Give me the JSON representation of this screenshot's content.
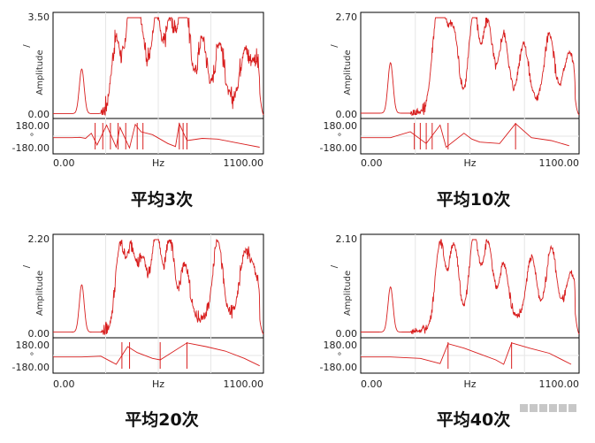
{
  "colors": {
    "trace": "#d81e1e",
    "frame": "#000000",
    "grid": "#e6e6e6"
  },
  "chart_data": [
    {
      "type": "line",
      "title": "平均3次",
      "xlabel": "Hz",
      "ylabel": "Amplitude",
      "phase_unit": "°",
      "y_unit_glyph": "/",
      "xlim": [
        0,
        1100
      ],
      "ylim": [
        0,
        3.5
      ],
      "x_ticks": [
        "0.00",
        "1100.00"
      ],
      "y_ticks": [
        "3.50",
        "0.00"
      ],
      "phase_ticks": [
        "180.00",
        "-180.00"
      ],
      "phase_lim": [
        -180,
        180
      ],
      "noise": 0.55,
      "peaks": [
        [
          150,
          1.6
        ],
        [
          330,
          2.6
        ],
        [
          400,
          2.8
        ],
        [
          430,
          3.3
        ],
        [
          470,
          1.9
        ],
        [
          540,
          3.5
        ],
        [
          610,
          3.1
        ],
        [
          670,
          2.6
        ],
        [
          700,
          2.3
        ],
        [
          780,
          2.4
        ],
        [
          870,
          2.2
        ],
        [
          1000,
          1.8
        ],
        [
          1060,
          1.4
        ]
      ],
      "phase_path": [
        [
          0,
          -20
        ],
        [
          100,
          -20
        ],
        [
          140,
          -15
        ],
        [
          170,
          -30
        ],
        [
          200,
          40
        ],
        [
          230,
          -120
        ],
        [
          280,
          150
        ],
        [
          330,
          -150
        ],
        [
          350,
          120
        ],
        [
          400,
          -160
        ],
        [
          430,
          160
        ],
        [
          460,
          60
        ],
        [
          520,
          20
        ],
        [
          560,
          -40
        ],
        [
          600,
          -100
        ],
        [
          640,
          -140
        ],
        [
          660,
          170
        ],
        [
          700,
          -60
        ],
        [
          780,
          -30
        ],
        [
          860,
          -40
        ],
        [
          940,
          -80
        ],
        [
          1000,
          -110
        ],
        [
          1080,
          -150
        ]
      ],
      "phase_jumps": [
        220,
        260,
        300,
        340,
        380,
        440,
        470,
        660,
        680,
        700
      ]
    },
    {
      "type": "line",
      "title": "平均10次",
      "xlabel": "Hz",
      "ylabel": "Amplitude",
      "phase_unit": "°",
      "y_unit_glyph": "/",
      "xlim": [
        0,
        1100
      ],
      "ylim": [
        0,
        2.7
      ],
      "x_ticks": [
        "0.00",
        "1100.00"
      ],
      "y_ticks": [
        "2.70",
        "0.00"
      ],
      "phase_ticks": [
        "180.00",
        "-180.00"
      ],
      "phase_lim": [
        -180,
        180
      ],
      "noise": 0.25,
      "peaks": [
        [
          150,
          1.4
        ],
        [
          380,
          2.2
        ],
        [
          420,
          1.9
        ],
        [
          470,
          2.0
        ],
        [
          570,
          2.65
        ],
        [
          640,
          2.3
        ],
        [
          720,
          1.9
        ],
        [
          820,
          1.6
        ],
        [
          950,
          1.75
        ],
        [
          1050,
          1.2
        ]
      ],
      "phase_path": [
        [
          0,
          -20
        ],
        [
          150,
          -20
        ],
        [
          250,
          60
        ],
        [
          330,
          -100
        ],
        [
          400,
          150
        ],
        [
          430,
          -150
        ],
        [
          520,
          40
        ],
        [
          560,
          -40
        ],
        [
          600,
          -80
        ],
        [
          700,
          -100
        ],
        [
          780,
          170
        ],
        [
          860,
          -20
        ],
        [
          960,
          -60
        ],
        [
          1050,
          -130
        ]
      ],
      "phase_jumps": [
        270,
        300,
        330,
        360,
        440,
        780
      ]
    },
    {
      "type": "line",
      "title": "平均20次",
      "xlabel": "Hz",
      "ylabel": "Amplitude",
      "phase_unit": "°",
      "y_unit_glyph": "/",
      "xlim": [
        0,
        1100
      ],
      "ylim": [
        0,
        2.2
      ],
      "x_ticks": [
        "0.00",
        "1100.00"
      ],
      "y_ticks": [
        "2.20",
        "0.00"
      ],
      "phase_ticks": [
        "180.00",
        "-180.00"
      ],
      "phase_lim": [
        -180,
        180
      ],
      "noise": 0.25,
      "peaks": [
        [
          150,
          1.1
        ],
        [
          350,
          1.9
        ],
        [
          410,
          1.75
        ],
        [
          470,
          1.5
        ],
        [
          540,
          2.15
        ],
        [
          610,
          1.9
        ],
        [
          690,
          1.3
        ],
        [
          860,
          1.8
        ],
        [
          1000,
          1.3
        ],
        [
          1050,
          0.9
        ]
      ],
      "phase_path": [
        [
          0,
          -20
        ],
        [
          150,
          -20
        ],
        [
          250,
          -10
        ],
        [
          330,
          -120
        ],
        [
          390,
          120
        ],
        [
          440,
          40
        ],
        [
          520,
          -40
        ],
        [
          560,
          -60
        ],
        [
          700,
          170
        ],
        [
          800,
          120
        ],
        [
          900,
          60
        ],
        [
          1000,
          -40
        ],
        [
          1080,
          -140
        ]
      ],
      "phase_jumps": [
        360,
        400,
        560,
        700
      ]
    },
    {
      "type": "line",
      "title": "平均40次",
      "xlabel": "Hz",
      "ylabel": "Amplitude",
      "phase_unit": "°",
      "y_unit_glyph": "/",
      "xlim": [
        0,
        1100
      ],
      "ylim": [
        0,
        2.1
      ],
      "x_ticks": [
        "0.00",
        "1100.00"
      ],
      "y_ticks": [
        "2.10",
        "0.00"
      ],
      "phase_ticks": [
        "180.00",
        "-180.00"
      ],
      "phase_lim": [
        -180,
        180
      ],
      "noise": 0.15,
      "peaks": [
        [
          150,
          1.0
        ],
        [
          400,
          1.9
        ],
        [
          470,
          1.8
        ],
        [
          570,
          1.95
        ],
        [
          640,
          1.75
        ],
        [
          720,
          1.2
        ],
        [
          860,
          1.3
        ],
        [
          960,
          1.45
        ],
        [
          1060,
          0.8
        ]
      ],
      "phase_path": [
        [
          0,
          -20
        ],
        [
          150,
          -20
        ],
        [
          300,
          -40
        ],
        [
          400,
          -110
        ],
        [
          440,
          160
        ],
        [
          520,
          100
        ],
        [
          600,
          20
        ],
        [
          680,
          -60
        ],
        [
          720,
          -120
        ],
        [
          760,
          170
        ],
        [
          850,
          100
        ],
        [
          950,
          30
        ],
        [
          1060,
          -120
        ]
      ],
      "phase_jumps": [
        440,
        760
      ]
    }
  ]
}
